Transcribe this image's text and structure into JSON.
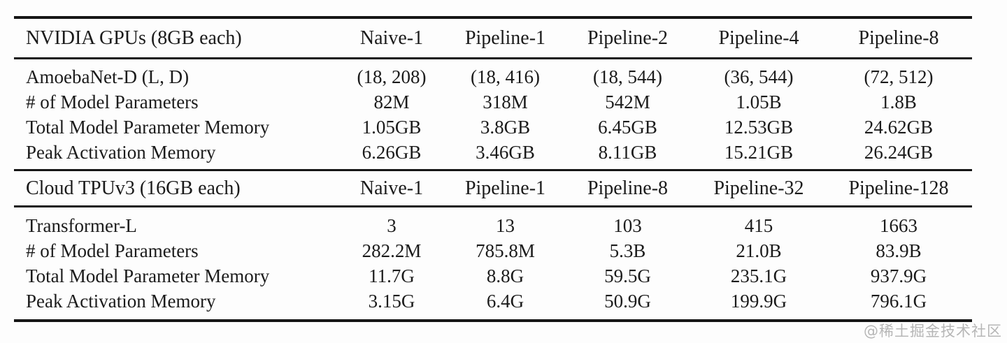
{
  "watermark": {
    "text": "@稀土掘金技术社区",
    "color": "#b6b6b6"
  },
  "tables": [
    {
      "header": {
        "label": "NVIDIA GPUs (8GB each)",
        "columns": [
          "Naive-1",
          "Pipeline-1",
          "Pipeline-2",
          "Pipeline-4",
          "Pipeline-8"
        ]
      },
      "rows": [
        {
          "label": "AmoebaNet-D (L, D)",
          "values": [
            "(18, 208)",
            "(18, 416)",
            "(18, 544)",
            "(36, 544)",
            "(72, 512)"
          ]
        },
        {
          "label": "# of Model Parameters",
          "values": [
            "82M",
            "318M",
            "542M",
            "1.05B",
            "1.8B"
          ]
        },
        {
          "label": "Total Model Parameter Memory",
          "values": [
            "1.05GB",
            "3.8GB",
            "6.45GB",
            "12.53GB",
            "24.62GB"
          ]
        },
        {
          "label": "Peak Activation Memory",
          "values": [
            "6.26GB",
            "3.46GB",
            "8.11GB",
            "15.21GB",
            "26.24GB"
          ]
        }
      ]
    },
    {
      "header": {
        "label": "Cloud TPUv3 (16GB each)",
        "columns": [
          "Naive-1",
          "Pipeline-1",
          "Pipeline-8",
          "Pipeline-32",
          "Pipeline-128"
        ]
      },
      "rows": [
        {
          "label": "Transformer-L",
          "values": [
            "3",
            "13",
            "103",
            "415",
            "1663"
          ]
        },
        {
          "label": "# of Model Parameters",
          "values": [
            "282.2M",
            "785.8M",
            "5.3B",
            "21.0B",
            "83.9B"
          ]
        },
        {
          "label": "Total Model Parameter Memory",
          "values": [
            "11.7G",
            "8.8G",
            "59.5G",
            "235.1G",
            "937.9G"
          ]
        },
        {
          "label": "Peak Activation Memory",
          "values": [
            "3.15G",
            "6.4G",
            "50.9G",
            "199.9G",
            "796.1G"
          ]
        }
      ]
    }
  ]
}
